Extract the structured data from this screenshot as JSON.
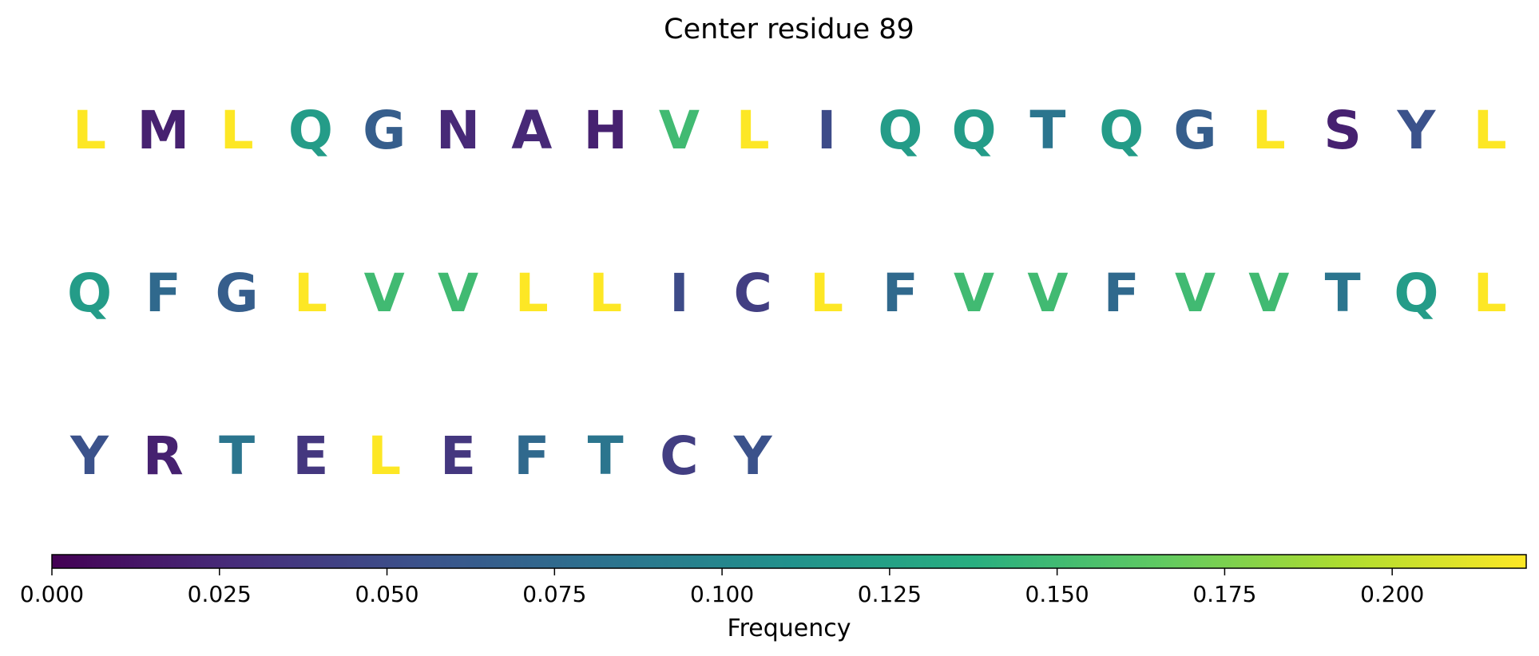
{
  "chart_data": {
    "type": "heatmap",
    "title": "Center residue 89",
    "sequence": [
      {
        "residue": "L",
        "frequency": 0.22
      },
      {
        "residue": "M",
        "frequency": 0.02
      },
      {
        "residue": "L",
        "frequency": 0.22
      },
      {
        "residue": "Q",
        "frequency": 0.12
      },
      {
        "residue": "G",
        "frequency": 0.065
      },
      {
        "residue": "N",
        "frequency": 0.025
      },
      {
        "residue": "A",
        "frequency": 0.025
      },
      {
        "residue": "H",
        "frequency": 0.02
      },
      {
        "residue": "V",
        "frequency": 0.15
      },
      {
        "residue": "L",
        "frequency": 0.22
      },
      {
        "residue": "I",
        "frequency": 0.05
      },
      {
        "residue": "Q",
        "frequency": 0.12
      },
      {
        "residue": "Q",
        "frequency": 0.12
      },
      {
        "residue": "T",
        "frequency": 0.085
      },
      {
        "residue": "Q",
        "frequency": 0.12
      },
      {
        "residue": "G",
        "frequency": 0.065
      },
      {
        "residue": "L",
        "frequency": 0.22
      },
      {
        "residue": "S",
        "frequency": 0.02
      },
      {
        "residue": "Y",
        "frequency": 0.055
      },
      {
        "residue": "L",
        "frequency": 0.22
      },
      {
        "residue": "Q",
        "frequency": 0.12
      },
      {
        "residue": "F",
        "frequency": 0.075
      },
      {
        "residue": "G",
        "frequency": 0.065
      },
      {
        "residue": "L",
        "frequency": 0.22
      },
      {
        "residue": "V",
        "frequency": 0.15
      },
      {
        "residue": "V",
        "frequency": 0.15
      },
      {
        "residue": "L",
        "frequency": 0.22
      },
      {
        "residue": "L",
        "frequency": 0.22
      },
      {
        "residue": "I",
        "frequency": 0.05
      },
      {
        "residue": "C",
        "frequency": 0.04
      },
      {
        "residue": "L",
        "frequency": 0.22
      },
      {
        "residue": "F",
        "frequency": 0.075
      },
      {
        "residue": "V",
        "frequency": 0.15
      },
      {
        "residue": "V",
        "frequency": 0.15
      },
      {
        "residue": "F",
        "frequency": 0.075
      },
      {
        "residue": "V",
        "frequency": 0.15
      },
      {
        "residue": "V",
        "frequency": 0.15
      },
      {
        "residue": "T",
        "frequency": 0.085
      },
      {
        "residue": "Q",
        "frequency": 0.12
      },
      {
        "residue": "L",
        "frequency": 0.22
      },
      {
        "residue": "Y",
        "frequency": 0.055
      },
      {
        "residue": "R",
        "frequency": 0.02
      },
      {
        "residue": "T",
        "frequency": 0.085
      },
      {
        "residue": "E",
        "frequency": 0.035
      },
      {
        "residue": "L",
        "frequency": 0.22
      },
      {
        "residue": "E",
        "frequency": 0.035
      },
      {
        "residue": "F",
        "frequency": 0.075
      },
      {
        "residue": "T",
        "frequency": 0.085
      },
      {
        "residue": "C",
        "frequency": 0.04
      },
      {
        "residue": "Y",
        "frequency": 0.055
      }
    ],
    "residues_per_row": 20,
    "colorbar": {
      "label": "Frequency",
      "colormap": "viridis",
      "range": [
        0,
        0.22
      ],
      "ticks": [
        0.0,
        0.025,
        0.05,
        0.075,
        0.1,
        0.125,
        0.15,
        0.175,
        0.2
      ],
      "tick_labels": [
        "0.000",
        "0.025",
        "0.050",
        "0.075",
        "0.100",
        "0.125",
        "0.150",
        "0.175",
        "0.200"
      ],
      "placement": "bottom"
    },
    "grid": false
  }
}
